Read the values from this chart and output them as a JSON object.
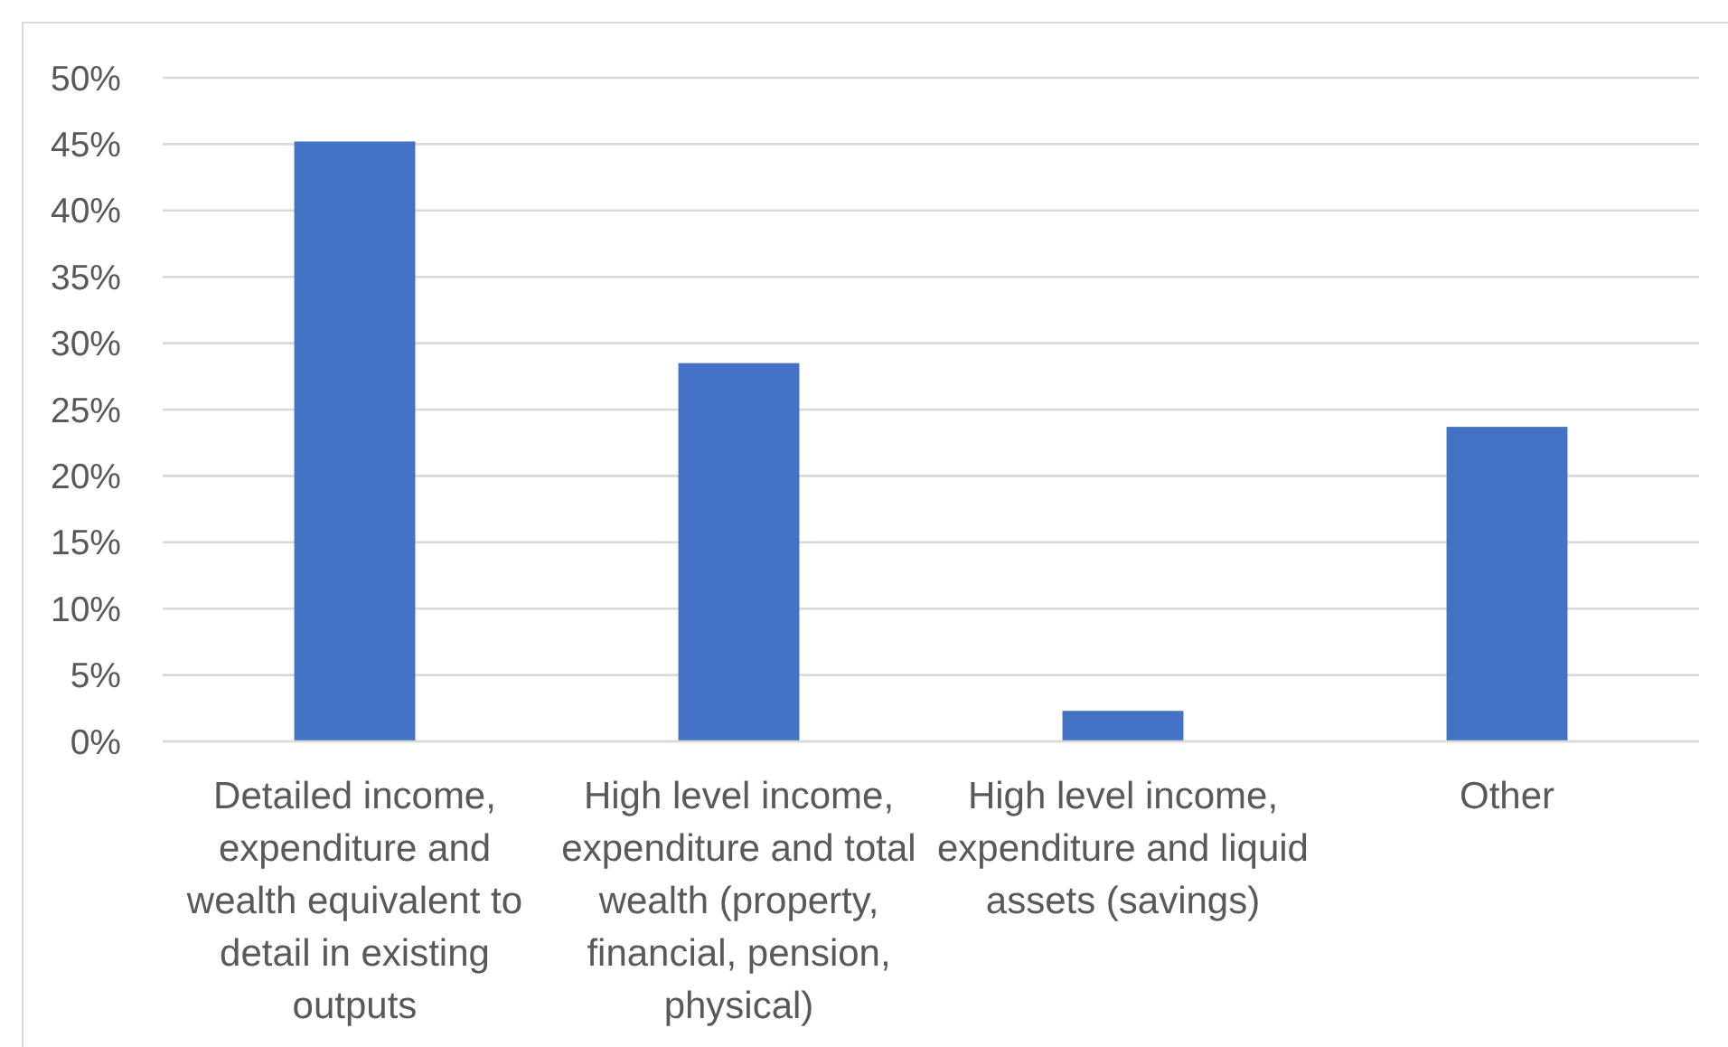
{
  "chart_data": {
    "type": "bar",
    "categories": [
      "Detailed income, expenditure and wealth equivalent to detail in existing outputs",
      "High level income, expenditure and total wealth (property, financial, pension, physical)",
      "High level income, expenditure and liquid assets (savings)",
      "Other"
    ],
    "values": [
      45.2,
      28.5,
      2.3,
      23.7
    ],
    "color": "#4472c4",
    "ylim": [
      0,
      50
    ],
    "yticks": [
      {
        "value": 0,
        "label": "0%"
      },
      {
        "value": 5,
        "label": "5%"
      },
      {
        "value": 10,
        "label": "10%"
      },
      {
        "value": 15,
        "label": "15%"
      },
      {
        "value": 20,
        "label": "20%"
      },
      {
        "value": 25,
        "label": "25%"
      },
      {
        "value": 30,
        "label": "30%"
      },
      {
        "value": 35,
        "label": "35%"
      },
      {
        "value": 40,
        "label": "40%"
      },
      {
        "value": 45,
        "label": "45%"
      },
      {
        "value": 50,
        "label": "50%"
      }
    ],
    "grid": true
  }
}
